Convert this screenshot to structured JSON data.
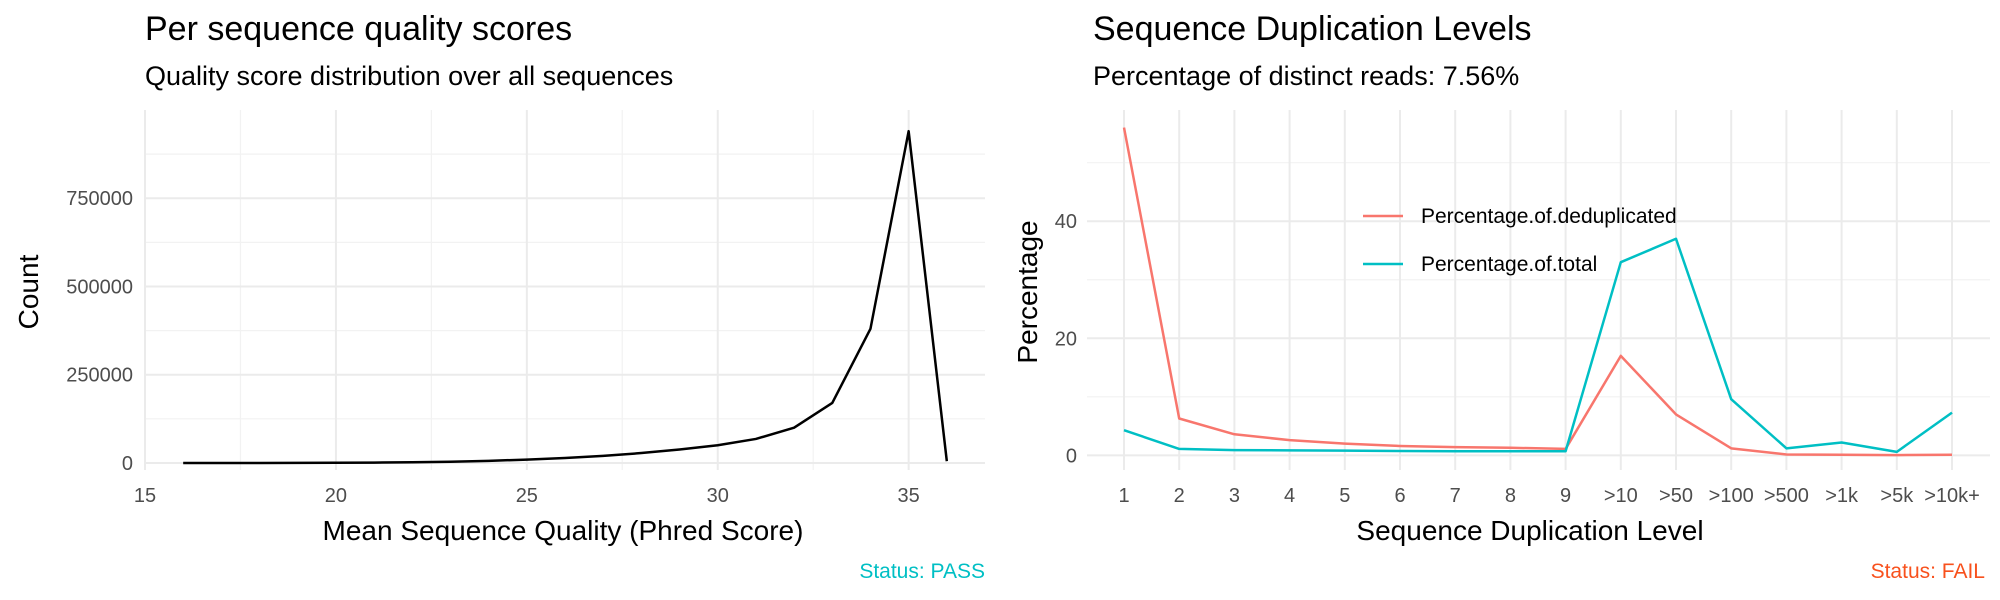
{
  "chart_data": [
    {
      "type": "line",
      "title": "Per sequence quality scores",
      "subtitle": "Quality score distribution over all sequences",
      "xlabel": "Mean Sequence Quality (Phred Score)",
      "ylabel": "Count",
      "xlim": [
        15,
        37
      ],
      "ylim": [
        -20000,
        1000000
      ],
      "x_ticks": [
        15,
        20,
        25,
        30,
        35
      ],
      "y_ticks": [
        0,
        250000,
        500000,
        750000
      ],
      "grid": true,
      "series": [
        {
          "color": "#000000",
          "x": [
            16,
            17,
            18,
            19,
            20,
            21,
            22,
            23,
            24,
            25,
            26,
            27,
            28,
            29,
            30,
            31,
            32,
            33,
            34,
            35,
            36
          ],
          "y": [
            0,
            0,
            0,
            200,
            500,
            1000,
            2000,
            3500,
            6000,
            9500,
            14000,
            20000,
            28000,
            38000,
            50000,
            68000,
            100000,
            170000,
            380000,
            940000,
            5000
          ]
        }
      ],
      "caption": "Status: PASS",
      "caption_color": "#00BFC4"
    },
    {
      "type": "line",
      "title": "Sequence Duplication Levels",
      "subtitle": "Percentage of distinct reads: 7.56%",
      "xlabel": "Sequence Duplication Level",
      "ylabel": "Percentage",
      "categories": [
        "1",
        "2",
        "3",
        "4",
        "5",
        "6",
        "7",
        "8",
        "9",
        ">10",
        ">50",
        ">100",
        ">500",
        ">1k",
        ">5k",
        ">10k+"
      ],
      "ylim": [
        -2.5,
        59
      ],
      "y_ticks": [
        0,
        20,
        40
      ],
      "grid": true,
      "legend_position": "top-center",
      "series": [
        {
          "name": "Percentage.of.deduplicated",
          "color": "#F8766D",
          "values": [
            56,
            6.3,
            3.6,
            2.6,
            2.0,
            1.6,
            1.4,
            1.3,
            1.1,
            17,
            7.0,
            1.2,
            0.15,
            0.1,
            0.05,
            0.1
          ]
        },
        {
          "name": "Percentage.of.total",
          "color": "#00BFC4",
          "values": [
            4.3,
            1.1,
            0.9,
            0.85,
            0.8,
            0.75,
            0.7,
            0.7,
            0.7,
            33,
            37,
            9.6,
            1.2,
            2.2,
            0.6,
            7.3
          ]
        }
      ],
      "caption": "Status: FAIL",
      "caption_color": "#F8511D"
    }
  ]
}
